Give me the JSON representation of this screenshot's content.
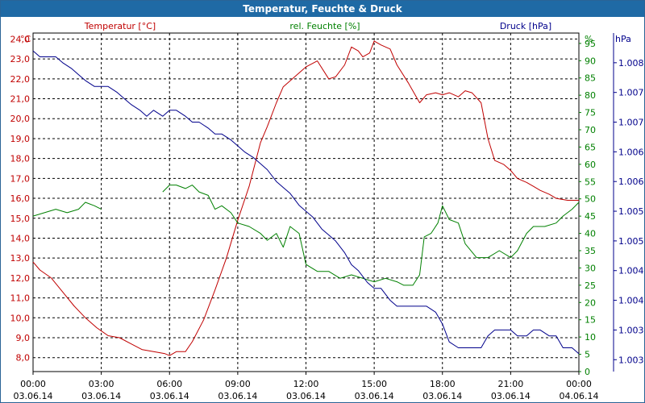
{
  "window": {
    "title": "Temperatur, Feuchte & Druck"
  },
  "chart_data": {
    "type": "line",
    "title": "Temperatur, Feuchte & Druck",
    "colors": {
      "temp": "#c00000",
      "hum": "#008000",
      "press": "#00008b",
      "grid": "#000000"
    },
    "x_labels": [
      {
        "time": "00:00",
        "date": "03.06.14"
      },
      {
        "time": "03:00",
        "date": "03.06.14"
      },
      {
        "time": "06:00",
        "date": "03.06.14"
      },
      {
        "time": "09:00",
        "date": "03.06.14"
      },
      {
        "time": "12:00",
        "date": "03.06.14"
      },
      {
        "time": "15:00",
        "date": "03.06.14"
      },
      {
        "time": "18:00",
        "date": "03.06.14"
      },
      {
        "time": "21:00",
        "date": "03.06.14"
      },
      {
        "time": "00:00",
        "date": "04.06.14"
      }
    ],
    "xlim": [
      0,
      24
    ],
    "axes": {
      "temp": {
        "label": "Temperatur [°C]",
        "unit": "°C",
        "ylim": [
          7.3,
          24.3
        ],
        "ticks": [
          "8,0",
          "9,0",
          "10,0",
          "11,0",
          "12,0",
          "13,0",
          "14,0",
          "15,0",
          "16,0",
          "17,0",
          "18,0",
          "19,0",
          "20,0",
          "21,0",
          "22,0",
          "23,0",
          "24,0"
        ]
      },
      "hum": {
        "label": "rel. Feuchte [%]",
        "unit": "%",
        "ylim": [
          0,
          98
        ],
        "ticks": [
          "0",
          "5",
          "10",
          "15",
          "20",
          "25",
          "30",
          "35",
          "40",
          "45",
          "50",
          "55",
          "60",
          "65",
          "70",
          "75",
          "80",
          "85",
          "90",
          "95"
        ]
      },
      "press": {
        "label": "Druck [hPa]",
        "unit": "hPa",
        "ylim": [
          1002.8,
          1008.5
        ],
        "ticks": [
          "1.003",
          "1.003",
          "1.004",
          "1.004",
          "1.005",
          "1.005",
          "1.006",
          "1.006",
          "1.007",
          "1.007",
          "1.008"
        ]
      }
    },
    "series": [
      {
        "name": "Temperatur",
        "axis": "temp",
        "color": "#c00000",
        "x": [
          0,
          0.3,
          0.8,
          1.3,
          1.8,
          2.3,
          2.8,
          3.3,
          3.8,
          4.3,
          4.8,
          5.3,
          5.8,
          6.0,
          6.3,
          6.7,
          7.0,
          7.5,
          8.0,
          8.5,
          9.0,
          9.5,
          10.0,
          10.3,
          10.7,
          11.0,
          11.5,
          12.0,
          12.5,
          13.0,
          13.3,
          13.7,
          14.0,
          14.3,
          14.5,
          14.8,
          15.0,
          15.3,
          15.7,
          16.0,
          16.5,
          17.0,
          17.3,
          17.7,
          18.0,
          18.3,
          18.7,
          19.0,
          19.3,
          19.7,
          20.0,
          20.3,
          20.7,
          21.0,
          21.3,
          21.7,
          22.0,
          22.3,
          22.7,
          23.0,
          23.5,
          24.0
        ],
        "values": [
          12.8,
          12.4,
          12.0,
          11.3,
          10.6,
          10.0,
          9.5,
          9.1,
          9.0,
          8.7,
          8.4,
          8.3,
          8.2,
          8.1,
          8.3,
          8.3,
          8.8,
          9.9,
          11.4,
          13.0,
          14.9,
          16.6,
          18.8,
          19.6,
          20.8,
          21.6,
          22.1,
          22.6,
          22.9,
          22.0,
          22.1,
          22.7,
          23.6,
          23.4,
          23.1,
          23.3,
          23.9,
          23.7,
          23.5,
          22.7,
          21.8,
          20.8,
          21.2,
          21.3,
          21.2,
          21.3,
          21.1,
          21.4,
          21.3,
          20.8,
          19.0,
          17.9,
          17.7,
          17.4,
          17.0,
          16.8,
          16.6,
          16.4,
          16.2,
          16.0,
          15.9,
          15.9
        ]
      },
      {
        "name": "rel. Feuchte",
        "axis": "hum",
        "color": "#008000",
        "x": [
          0,
          0.5,
          1.0,
          1.5,
          2.0,
          2.3,
          2.7,
          3.0,
          null,
          5.7,
          6.0,
          6.3,
          6.7,
          7.0,
          7.3,
          7.7,
          8.0,
          8.3,
          8.7,
          9.0,
          9.5,
          10.0,
          10.3,
          10.7,
          11.0,
          11.3,
          11.7,
          12.0,
          12.5,
          13.0,
          13.5,
          14.0,
          14.5,
          15.0,
          15.5,
          16.0,
          16.3,
          16.7,
          17.0,
          17.2,
          17.5,
          17.8,
          18.0,
          18.3,
          18.7,
          19.0,
          19.5,
          20.0,
          20.5,
          21.0,
          21.3,
          21.7,
          22.0,
          22.5,
          23.0,
          23.3,
          23.7,
          24.0
        ],
        "values": [
          45,
          46,
          47,
          46,
          47,
          49,
          48,
          47,
          null,
          52,
          54,
          54,
          53,
          54,
          52,
          51,
          47,
          48,
          46,
          43,
          42,
          40,
          38,
          40,
          36,
          42,
          40,
          31,
          29,
          29,
          27,
          28,
          27,
          26,
          27,
          26,
          25,
          25,
          28,
          39,
          40,
          43,
          48,
          44,
          43,
          37,
          33,
          33,
          35,
          33,
          35,
          40,
          42,
          42,
          43,
          45,
          47,
          49
        ]
      },
      {
        "name": "Druck",
        "axis": "press",
        "color": "#00008b",
        "x": [
          0,
          0.3,
          0.7,
          1.0,
          1.3,
          1.7,
          2.0,
          2.3,
          2.7,
          3.0,
          3.3,
          3.7,
          4.0,
          4.3,
          4.7,
          5.0,
          5.3,
          5.7,
          6.0,
          6.3,
          6.7,
          7.0,
          7.3,
          7.7,
          8.0,
          8.3,
          8.7,
          9.0,
          9.3,
          9.7,
          10.0,
          10.3,
          10.7,
          11.0,
          11.3,
          11.7,
          12.0,
          12.3,
          12.7,
          13.0,
          13.3,
          13.7,
          14.0,
          14.3,
          14.7,
          15.0,
          15.3,
          15.7,
          16.0,
          16.3,
          16.7,
          17.0,
          17.3,
          17.7,
          18.0,
          18.3,
          18.7,
          19.0,
          19.3,
          19.7,
          20.0,
          20.3,
          20.7,
          21.0,
          21.3,
          21.7,
          22.0,
          22.3,
          22.7,
          23.0,
          23.3,
          23.7,
          24.0
        ],
        "values": [
          1008.2,
          1008.1,
          1008.1,
          1008.1,
          1008.0,
          1007.9,
          1007.8,
          1007.7,
          1007.6,
          1007.6,
          1007.6,
          1007.5,
          1007.4,
          1007.3,
          1007.2,
          1007.1,
          1007.2,
          1007.1,
          1007.2,
          1007.2,
          1007.1,
          1007.0,
          1007.0,
          1006.9,
          1006.8,
          1006.8,
          1006.7,
          1006.6,
          1006.5,
          1006.4,
          1006.3,
          1006.2,
          1006.0,
          1005.9,
          1005.8,
          1005.6,
          1005.5,
          1005.4,
          1005.2,
          1005.1,
          1005.0,
          1004.8,
          1004.6,
          1004.5,
          1004.3,
          1004.2,
          1004.2,
          1004.0,
          1003.9,
          1003.9,
          1003.9,
          1003.9,
          1003.9,
          1003.8,
          1003.6,
          1003.3,
          1003.2,
          1003.2,
          1003.2,
          1003.2,
          1003.4,
          1003.5,
          1003.5,
          1003.5,
          1003.4,
          1003.4,
          1003.5,
          1003.5,
          1003.4,
          1003.4,
          1003.2,
          1003.2,
          1003.1
        ]
      }
    ]
  }
}
